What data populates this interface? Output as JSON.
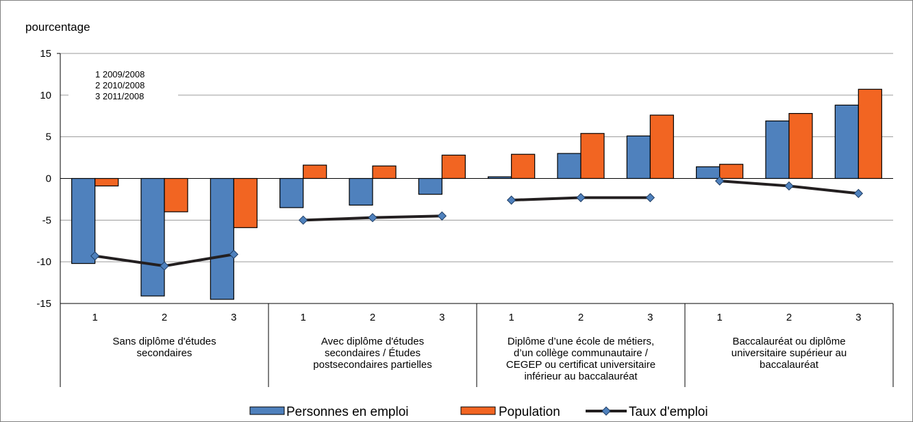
{
  "chart_data": {
    "type": "bar",
    "ylabel": "pourcentage",
    "ylim": [
      -15,
      15
    ],
    "yticks": [
      15,
      10,
      5,
      0,
      -5,
      -10,
      -15
    ],
    "grid": true,
    "legend_position": "bottom",
    "notes": [
      "1  2009/2008",
      "2  2010/2008",
      "3  2011/2008"
    ],
    "groups": [
      {
        "label": [
          "Sans diplôme d'études",
          "secondaires"
        ],
        "categories": [
          "1",
          "2",
          "3"
        ]
      },
      {
        "label": [
          "Avec diplôme d'études",
          "secondaires / Études",
          "postsecondaires partielles"
        ],
        "categories": [
          "1",
          "2",
          "3"
        ]
      },
      {
        "label": [
          "Diplôme d’une école de métiers,",
          "d’un collège communautaire /",
          "CEGEP ou certificat universitaire",
          "inférieur au baccalauréat"
        ],
        "categories": [
          "1",
          "2",
          "3"
        ]
      },
      {
        "label": [
          "Baccalauréat ou diplôme",
          "universitaire supérieur au",
          "baccalauréat"
        ],
        "categories": [
          "1",
          "2",
          "3"
        ]
      }
    ],
    "series": [
      {
        "name": "Personnes en emploi",
        "type": "bar",
        "color": "#4F81BD",
        "values": [
          -10.2,
          -14.1,
          -14.5,
          -3.5,
          -3.2,
          -1.9,
          0.2,
          3.0,
          5.1,
          1.4,
          6.9,
          8.8
        ]
      },
      {
        "name": "Population",
        "type": "bar",
        "color": "#F26522",
        "values": [
          -0.9,
          -4.0,
          -5.9,
          1.6,
          1.5,
          2.8,
          2.9,
          5.4,
          7.6,
          1.7,
          7.8,
          10.7
        ]
      },
      {
        "name": "Taux d'emploi",
        "type": "line",
        "color": "#231F20",
        "marker_color": "#4F81BD",
        "values": [
          -9.3,
          -10.5,
          -9.1,
          -5.0,
          -4.7,
          -4.5,
          -2.6,
          -2.3,
          -2.3,
          -0.3,
          -0.9,
          -1.8
        ]
      }
    ]
  }
}
